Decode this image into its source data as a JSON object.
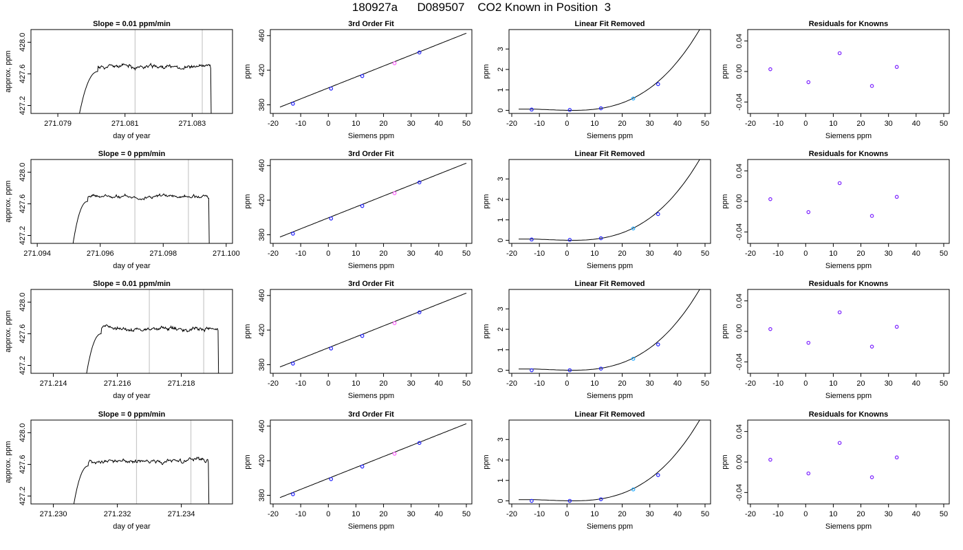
{
  "title": "180927a      D089507    CO2 Known in Position  3",
  "chart_data": [
    {
      "type": "line",
      "row": 1,
      "kind": "trace",
      "title": "Slope =  0.01  ppm/min",
      "xlabel": "day of year",
      "ylabel": "approx. ppm",
      "xticks": [
        "271.079",
        "271.081",
        "271.083"
      ],
      "xtick_values": [
        271.079,
        271.081,
        271.083
      ],
      "yticks": [
        "427.2",
        "427.6",
        "428.0"
      ],
      "ytick_values": [
        427.2,
        427.6,
        428.0
      ],
      "xlim": [
        271.0782,
        271.0842
      ],
      "ylim": [
        427.1,
        428.16
      ],
      "vlines": [
        271.0813,
        271.0833
      ],
      "line_color": "#000000",
      "vline_color": "#c8c8c8",
      "trace": {
        "x_start": 271.0796,
        "x_end": 271.0836,
        "rise_end": 271.0802,
        "plateau": 427.69,
        "noise": 0.018,
        "seed": 11
      }
    },
    {
      "type": "scatter",
      "row": 1,
      "kind": "fit",
      "title": "3rd Order Fit",
      "xlabel": "Siemens ppm",
      "ylabel": "ppm",
      "xticks": [
        "-20",
        "-10",
        "0",
        "10",
        "20",
        "30",
        "40",
        "50"
      ],
      "xtick_values": [
        -20,
        -10,
        0,
        10,
        20,
        30,
        40,
        50
      ],
      "yticks": [
        "380",
        "420",
        "460"
      ],
      "ytick_values": [
        380,
        420,
        460
      ],
      "xlim": [
        -21,
        52
      ],
      "ylim": [
        370,
        467
      ],
      "points": [
        {
          "x": -12.8,
          "y": 381.2
        },
        {
          "x": 1.0,
          "y": 398.7
        },
        {
          "x": 12.3,
          "y": 413.2
        },
        {
          "x": 24.0,
          "y": 428.0
        },
        {
          "x": 33.0,
          "y": 440.5
        }
      ],
      "curve": {
        "coef": [
          399.5,
          1.266,
          0.0,
          0.0
        ],
        "x_from": -17.5,
        "x_to": 50
      },
      "point_colors": [
        "#2222ff",
        "#2222ff",
        "#2222ff",
        "#ff66ff",
        "#2222ff"
      ]
    },
    {
      "type": "scatter",
      "row": 1,
      "kind": "fit",
      "title": "Linear Fit Removed",
      "xlabel": "Siemens ppm",
      "ylabel": "ppm",
      "xticks": [
        "-20",
        "-10",
        "0",
        "10",
        "20",
        "30",
        "40",
        "50"
      ],
      "xtick_values": [
        -20,
        -10,
        0,
        10,
        20,
        30,
        40,
        50
      ],
      "yticks": [
        "0",
        "1",
        "2",
        "3"
      ],
      "ytick_values": [
        0,
        1,
        2,
        3
      ],
      "xlim": [
        -21,
        52
      ],
      "ylim": [
        -0.15,
        3.95
      ],
      "points": [
        {
          "x": -12.8,
          "y": 0.04
        },
        {
          "x": 1.0,
          "y": 0.02
        },
        {
          "x": 12.3,
          "y": 0.1
        },
        {
          "x": 24.0,
          "y": 0.58
        },
        {
          "x": 33.0,
          "y": 1.28
        }
      ],
      "curve": {
        "coef": [
          0.0032,
          -0.0024,
          0.0005,
          2.62e-05
        ],
        "x_from": -17.5,
        "x_to": 50
      },
      "point_colors": [
        "#2222ff",
        "#2222ff",
        "#2222ff",
        "#22aaff",
        "#2222ff"
      ]
    },
    {
      "type": "scatter",
      "row": 1,
      "kind": "resid",
      "title": "Residuals for Knowns",
      "xlabel": "Siemens ppm",
      "ylabel": "ppm",
      "xticks": [
        "-20",
        "-10",
        "0",
        "10",
        "20",
        "30",
        "40",
        "50"
      ],
      "xtick_values": [
        -20,
        -10,
        0,
        10,
        20,
        30,
        40,
        50
      ],
      "yticks": [
        "-0.04",
        "0.00",
        "0.04"
      ],
      "ytick_values": [
        -0.04,
        0.0,
        0.04
      ],
      "xlim": [
        -21,
        52
      ],
      "ylim": [
        -0.055,
        0.055
      ],
      "points": [
        {
          "x": -12.8,
          "y": 0.003
        },
        {
          "x": 1.0,
          "y": -0.014
        },
        {
          "x": 12.3,
          "y": 0.024
        },
        {
          "x": 24.0,
          "y": -0.019
        },
        {
          "x": 33.0,
          "y": 0.006
        }
      ],
      "point_colors": [
        "#7a1fff",
        "#7a1fff",
        "#7a1fff",
        "#7a1fff",
        "#7a1fff"
      ]
    },
    {
      "type": "line",
      "row": 2,
      "kind": "trace",
      "title": "Slope =  0  ppm/min",
      "xlabel": "day of year",
      "ylabel": "approx. ppm",
      "xticks": [
        "271.094",
        "271.096",
        "271.098",
        "271.100"
      ],
      "xtick_values": [
        271.094,
        271.096,
        271.098,
        271.1
      ],
      "yticks": [
        "427.2",
        "427.6",
        "428.0"
      ],
      "ytick_values": [
        427.2,
        427.6,
        428.0
      ],
      "xlim": [
        271.0938,
        271.1002
      ],
      "ylim": [
        427.1,
        428.16
      ],
      "vlines": [
        271.0971,
        271.0988
      ],
      "line_color": "#000000",
      "vline_color": "#c8c8c8",
      "trace": {
        "x_start": 271.0951,
        "x_end": 271.0995,
        "rise_end": 271.0956,
        "plateau": 427.69,
        "noise": 0.015,
        "seed": 23
      }
    },
    {
      "type": "scatter",
      "row": 2,
      "kind": "fit",
      "title": "3rd Order Fit",
      "xlabel": "Siemens ppm",
      "ylabel": "ppm",
      "xticks": [
        "-20",
        "-10",
        "0",
        "10",
        "20",
        "30",
        "40",
        "50"
      ],
      "xtick_values": [
        -20,
        -10,
        0,
        10,
        20,
        30,
        40,
        50
      ],
      "yticks": [
        "380",
        "420",
        "460"
      ],
      "ytick_values": [
        380,
        420,
        460
      ],
      "xlim": [
        -21,
        52
      ],
      "ylim": [
        370,
        467
      ],
      "points": [
        {
          "x": -12.8,
          "y": 381.2
        },
        {
          "x": 1.0,
          "y": 398.7
        },
        {
          "x": 12.3,
          "y": 413.2
        },
        {
          "x": 24.0,
          "y": 428.0
        },
        {
          "x": 33.0,
          "y": 440.5
        }
      ],
      "curve": {
        "coef": [
          399.5,
          1.266,
          0.0,
          0.0
        ],
        "x_from": -17.5,
        "x_to": 50
      },
      "point_colors": [
        "#2222ff",
        "#2222ff",
        "#2222ff",
        "#ff66ff",
        "#2222ff"
      ]
    },
    {
      "type": "scatter",
      "row": 2,
      "kind": "fit",
      "title": "Linear Fit Removed",
      "xlabel": "Siemens ppm",
      "ylabel": "ppm",
      "xticks": [
        "-20",
        "-10",
        "0",
        "10",
        "20",
        "30",
        "40",
        "50"
      ],
      "xtick_values": [
        -20,
        -10,
        0,
        10,
        20,
        30,
        40,
        50
      ],
      "yticks": [
        "0",
        "1",
        "2",
        "3"
      ],
      "ytick_values": [
        0,
        1,
        2,
        3
      ],
      "xlim": [
        -21,
        52
      ],
      "ylim": [
        -0.15,
        3.95
      ],
      "points": [
        {
          "x": -12.8,
          "y": 0.04
        },
        {
          "x": 1.0,
          "y": 0.02
        },
        {
          "x": 12.3,
          "y": 0.1
        },
        {
          "x": 24.0,
          "y": 0.58
        },
        {
          "x": 33.0,
          "y": 1.28
        }
      ],
      "curve": {
        "coef": [
          0.0032,
          -0.0024,
          0.0005,
          2.62e-05
        ],
        "x_from": -17.5,
        "x_to": 50
      },
      "point_colors": [
        "#2222ff",
        "#2222ff",
        "#2222ff",
        "#22aaff",
        "#2222ff"
      ]
    },
    {
      "type": "scatter",
      "row": 2,
      "kind": "resid",
      "title": "Residuals for Knowns",
      "xlabel": "Siemens ppm",
      "ylabel": "ppm",
      "xticks": [
        "-20",
        "-10",
        "0",
        "10",
        "20",
        "30",
        "40",
        "50"
      ],
      "xtick_values": [
        -20,
        -10,
        0,
        10,
        20,
        30,
        40,
        50
      ],
      "yticks": [
        "-0.04",
        "0.00",
        "0.04"
      ],
      "ytick_values": [
        -0.04,
        0.0,
        0.04
      ],
      "xlim": [
        -21,
        52
      ],
      "ylim": [
        -0.055,
        0.055
      ],
      "points": [
        {
          "x": -12.8,
          "y": 0.003
        },
        {
          "x": 1.0,
          "y": -0.014
        },
        {
          "x": 12.3,
          "y": 0.024
        },
        {
          "x": 24.0,
          "y": -0.019
        },
        {
          "x": 33.0,
          "y": 0.006
        }
      ],
      "point_colors": [
        "#7a1fff",
        "#7a1fff",
        "#7a1fff",
        "#7a1fff",
        "#7a1fff"
      ]
    },
    {
      "type": "line",
      "row": 3,
      "kind": "trace",
      "title": "Slope =  0.01  ppm/min",
      "xlabel": "day of year",
      "ylabel": "approx. ppm",
      "xticks": [
        "271.214",
        "271.216",
        "271.218"
      ],
      "xtick_values": [
        271.214,
        271.216,
        271.218
      ],
      "yticks": [
        "427.2",
        "427.6",
        "428.0"
      ],
      "ytick_values": [
        427.2,
        427.6,
        428.0
      ],
      "xlim": [
        271.2133,
        271.2196
      ],
      "ylim": [
        427.1,
        428.16
      ],
      "vlines": [
        271.217,
        271.2187
      ],
      "line_color": "#000000",
      "vline_color": "#c8c8c8",
      "trace": {
        "x_start": 271.215,
        "x_end": 271.2192,
        "rise_end": 271.2155,
        "plateau": 427.66,
        "noise": 0.018,
        "seed": 37
      }
    },
    {
      "type": "scatter",
      "row": 3,
      "kind": "fit",
      "title": "3rd Order Fit",
      "xlabel": "Siemens ppm",
      "ylabel": "ppm",
      "xticks": [
        "-20",
        "-10",
        "0",
        "10",
        "20",
        "30",
        "40",
        "50"
      ],
      "xtick_values": [
        -20,
        -10,
        0,
        10,
        20,
        30,
        40,
        50
      ],
      "yticks": [
        "380",
        "420",
        "460"
      ],
      "ytick_values": [
        380,
        420,
        460
      ],
      "xlim": [
        -21,
        52
      ],
      "ylim": [
        370,
        467
      ],
      "points": [
        {
          "x": -12.8,
          "y": 381.2
        },
        {
          "x": 1.0,
          "y": 398.7
        },
        {
          "x": 12.3,
          "y": 413.2
        },
        {
          "x": 24.0,
          "y": 428.0
        },
        {
          "x": 33.0,
          "y": 440.5
        }
      ],
      "curve": {
        "coef": [
          399.5,
          1.266,
          0.0,
          0.0
        ],
        "x_from": -17.5,
        "x_to": 50
      },
      "point_colors": [
        "#2222ff",
        "#2222ff",
        "#2222ff",
        "#ff66ff",
        "#2222ff"
      ]
    },
    {
      "type": "scatter",
      "row": 3,
      "kind": "fit",
      "title": "Linear Fit Removed",
      "xlabel": "Siemens ppm",
      "ylabel": "ppm",
      "xticks": [
        "-20",
        "-10",
        "0",
        "10",
        "20",
        "30",
        "40",
        "50"
      ],
      "xtick_values": [
        -20,
        -10,
        0,
        10,
        20,
        30,
        40,
        50
      ],
      "yticks": [
        "0",
        "1",
        "2",
        "3"
      ],
      "ytick_values": [
        0,
        1,
        2,
        3
      ],
      "xlim": [
        -21,
        52
      ],
      "ylim": [
        -0.15,
        3.95
      ],
      "points": [
        {
          "x": -12.8,
          "y": 0.0
        },
        {
          "x": 1.0,
          "y": 0.0
        },
        {
          "x": 12.3,
          "y": 0.08
        },
        {
          "x": 24.0,
          "y": 0.56
        },
        {
          "x": 33.0,
          "y": 1.26
        }
      ],
      "curve": {
        "coef": [
          0.0032,
          -0.0024,
          0.0005,
          2.62e-05
        ],
        "x_from": -17.5,
        "x_to": 50
      },
      "point_colors": [
        "#2222ff",
        "#2222ff",
        "#2222ff",
        "#22aaff",
        "#2222ff"
      ]
    },
    {
      "type": "scatter",
      "row": 3,
      "kind": "resid",
      "title": "Residuals for Knowns",
      "xlabel": "Siemens ppm",
      "ylabel": "ppm",
      "xticks": [
        "-20",
        "-10",
        "0",
        "10",
        "20",
        "30",
        "40",
        "50"
      ],
      "xtick_values": [
        -20,
        -10,
        0,
        10,
        20,
        30,
        40,
        50
      ],
      "yticks": [
        "-0.04",
        "0.00",
        "0.04"
      ],
      "ytick_values": [
        -0.04,
        0.0,
        0.04
      ],
      "xlim": [
        -21,
        52
      ],
      "ylim": [
        -0.055,
        0.055
      ],
      "points": [
        {
          "x": -12.8,
          "y": 0.003
        },
        {
          "x": 1.0,
          "y": -0.015
        },
        {
          "x": 12.3,
          "y": 0.025
        },
        {
          "x": 24.0,
          "y": -0.02
        },
        {
          "x": 33.0,
          "y": 0.006
        }
      ],
      "point_colors": [
        "#7a1fff",
        "#7a1fff",
        "#7a1fff",
        "#7a1fff",
        "#7a1fff"
      ]
    },
    {
      "type": "line",
      "row": 4,
      "kind": "trace",
      "title": "Slope =  0  ppm/min",
      "xlabel": "day of year",
      "ylabel": "approx. ppm",
      "xticks": [
        "271.230",
        "271.232",
        "271.234"
      ],
      "xtick_values": [
        271.23,
        271.232,
        271.234
      ],
      "yticks": [
        "427.2",
        "427.6",
        "428.0"
      ],
      "ytick_values": [
        427.2,
        427.6,
        428.0
      ],
      "xlim": [
        271.2293,
        271.2356
      ],
      "ylim": [
        427.1,
        428.16
      ],
      "vlines": [
        271.2326,
        271.2343
      ],
      "line_color": "#000000",
      "vline_color": "#c8c8c8",
      "trace": {
        "x_start": 271.2306,
        "x_end": 271.2349,
        "rise_end": 271.2311,
        "plateau": 427.64,
        "noise": 0.018,
        "seed": 53
      }
    },
    {
      "type": "scatter",
      "row": 4,
      "kind": "fit",
      "title": "3rd Order Fit",
      "xlabel": "Siemens ppm",
      "ylabel": "ppm",
      "xticks": [
        "-20",
        "-10",
        "0",
        "10",
        "20",
        "30",
        "40",
        "50"
      ],
      "xtick_values": [
        -20,
        -10,
        0,
        10,
        20,
        30,
        40,
        50
      ],
      "yticks": [
        "380",
        "420",
        "460"
      ],
      "ytick_values": [
        380,
        420,
        460
      ],
      "xlim": [
        -21,
        52
      ],
      "ylim": [
        370,
        467
      ],
      "points": [
        {
          "x": -12.8,
          "y": 381.2
        },
        {
          "x": 1.0,
          "y": 398.7
        },
        {
          "x": 12.3,
          "y": 413.2
        },
        {
          "x": 24.0,
          "y": 428.0
        },
        {
          "x": 33.0,
          "y": 440.5
        }
      ],
      "curve": {
        "coef": [
          399.5,
          1.266,
          0.0,
          0.0
        ],
        "x_from": -17.5,
        "x_to": 50
      },
      "point_colors": [
        "#2222ff",
        "#2222ff",
        "#2222ff",
        "#ff66ff",
        "#2222ff"
      ]
    },
    {
      "type": "scatter",
      "row": 4,
      "kind": "fit",
      "title": "Linear Fit Removed",
      "xlabel": "Siemens ppm",
      "ylabel": "ppm",
      "xticks": [
        "-20",
        "-10",
        "0",
        "10",
        "20",
        "30",
        "40",
        "50"
      ],
      "xtick_values": [
        -20,
        -10,
        0,
        10,
        20,
        30,
        40,
        50
      ],
      "yticks": [
        "0",
        "1",
        "2",
        "3"
      ],
      "ytick_values": [
        0,
        1,
        2,
        3
      ],
      "xlim": [
        -21,
        52
      ],
      "ylim": [
        -0.15,
        3.95
      ],
      "points": [
        {
          "x": -12.8,
          "y": 0.0
        },
        {
          "x": 1.0,
          "y": 0.0
        },
        {
          "x": 12.3,
          "y": 0.08
        },
        {
          "x": 24.0,
          "y": 0.56
        },
        {
          "x": 33.0,
          "y": 1.26
        }
      ],
      "curve": {
        "coef": [
          0.0032,
          -0.0024,
          0.0005,
          2.62e-05
        ],
        "x_from": -17.5,
        "x_to": 50
      },
      "point_colors": [
        "#2222ff",
        "#2222ff",
        "#2222ff",
        "#22aaff",
        "#2222ff"
      ]
    },
    {
      "type": "scatter",
      "row": 4,
      "kind": "resid",
      "title": "Residuals for Knowns",
      "xlabel": "Siemens ppm",
      "ylabel": "ppm",
      "xticks": [
        "-20",
        "-10",
        "0",
        "10",
        "20",
        "30",
        "40",
        "50"
      ],
      "xtick_values": [
        -20,
        -10,
        0,
        10,
        20,
        30,
        40,
        50
      ],
      "yticks": [
        "-0.04",
        "0.00",
        "0.04"
      ],
      "ytick_values": [
        -0.04,
        0.0,
        0.04
      ],
      "xlim": [
        -21,
        52
      ],
      "ylim": [
        -0.055,
        0.055
      ],
      "points": [
        {
          "x": -12.8,
          "y": 0.003
        },
        {
          "x": 1.0,
          "y": -0.015
        },
        {
          "x": 12.3,
          "y": 0.025
        },
        {
          "x": 24.0,
          "y": -0.02
        },
        {
          "x": 33.0,
          "y": 0.006
        }
      ],
      "point_colors": [
        "#7a1fff",
        "#7a1fff",
        "#7a1fff",
        "#7a1fff",
        "#7a1fff"
      ]
    }
  ]
}
